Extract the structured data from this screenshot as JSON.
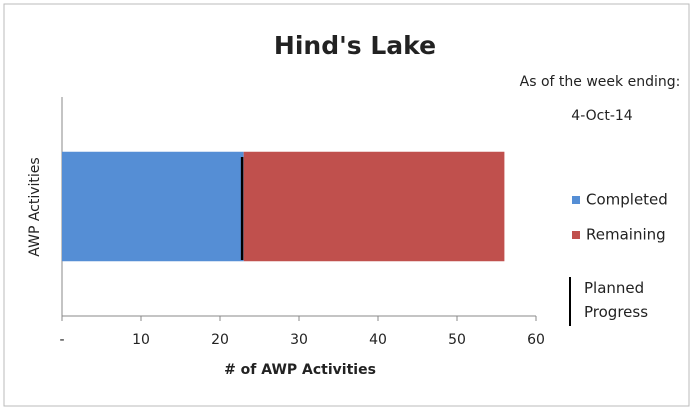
{
  "chart_data": {
    "type": "stacked-barh",
    "title": "Hind's Lake",
    "annotations": [
      "As of the week ending:",
      "4-Oct-14"
    ],
    "xlabel": "# of AWP Activities",
    "ylabel": "AWP Activities",
    "categories": [
      null
    ],
    "series": [
      {
        "name": "Completed",
        "color": "#558ed5",
        "values": [
          23
        ]
      },
      {
        "name": "Remaining",
        "color": "#c0504d",
        "values": [
          33
        ]
      }
    ],
    "planned": {
      "name": "Planned Progress",
      "color": "#000000",
      "value": 22.8
    },
    "xlim": [
      0,
      60
    ],
    "xticks": [
      {
        "value": 0,
        "label": "-"
      },
      10,
      20,
      30,
      40,
      50,
      60
    ],
    "legend": "right"
  }
}
